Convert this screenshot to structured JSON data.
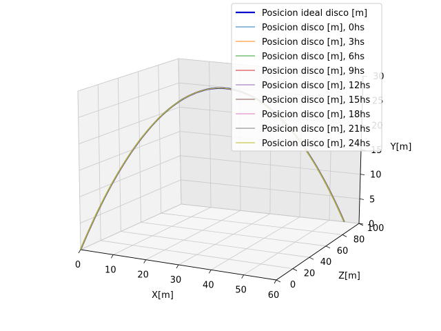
{
  "chart_data": {
    "type": "line",
    "projection": "3d",
    "title": "",
    "xlabel": "X[m]",
    "ylabel": "Y[m]",
    "zlabel": "Z[m]",
    "x_ticks": [
      0,
      10,
      20,
      30,
      40,
      50,
      60
    ],
    "y_ticks": [
      0,
      5,
      10,
      15,
      20,
      25,
      30
    ],
    "y_tick_labels": [
      "0",
      "5",
      "10",
      "15",
      "20",
      "25",
      "30"
    ],
    "z_ticks": [
      0,
      20,
      40,
      60,
      80,
      100
    ],
    "xlim": [
      0,
      60
    ],
    "ylim": [
      0,
      30
    ],
    "zlim": [
      0,
      100
    ],
    "grid": true,
    "legend_position": "top-right",
    "trajectory": {
      "x_start": 0,
      "x_end": 55,
      "y_start": 0,
      "y_peak": 29.5,
      "y_end": 0,
      "z_start": 0,
      "z_end": 100
    },
    "series": [
      {
        "name": "Posicion ideal disco [m]",
        "color": "#0000cc",
        "width": 2.2
      },
      {
        "name": "Posicion disco [m], 0hs",
        "color": "#1f77b4",
        "width": 1
      },
      {
        "name": "Posicion disco [m], 3hs",
        "color": "#ff7f0e",
        "width": 1
      },
      {
        "name": "Posicion disco [m], 6hs",
        "color": "#2ca02c",
        "width": 1
      },
      {
        "name": "Posicion disco [m], 9hs",
        "color": "#d62728",
        "width": 1
      },
      {
        "name": "Posicion disco [m], 12hs",
        "color": "#9467bd",
        "width": 1
      },
      {
        "name": "Posicion disco [m], 15hs",
        "color": "#8c564b",
        "width": 1
      },
      {
        "name": "Posicion disco [m], 18hs",
        "color": "#e377c2",
        "width": 1
      },
      {
        "name": "Posicion disco [m], 21hs",
        "color": "#7f7f7f",
        "width": 1
      },
      {
        "name": "Posicion disco [m], 24hs",
        "color": "#bcbd22",
        "width": 1
      }
    ]
  }
}
